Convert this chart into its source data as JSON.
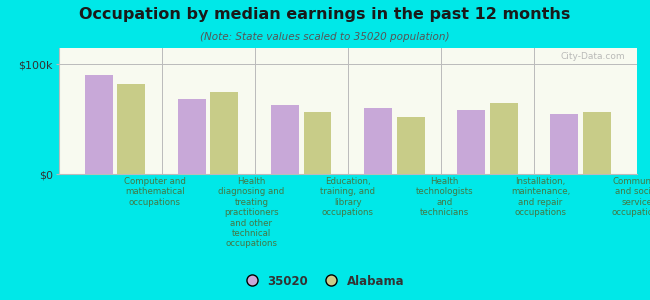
{
  "title": "Occupation by median earnings in the past 12 months",
  "subtitle": "(Note: State values scaled to 35020 population)",
  "categories": [
    "Computer and\nmathematical\noccupations",
    "Health\ndiagnosing and\ntreating\npractitioners\nand other\ntechnical\noccupations",
    "Education,\ntraining, and\nlibrary\noccupations",
    "Health\ntechnologists\nand\ntechnicians",
    "Installation,\nmaintenance,\nand repair\noccupations",
    "Community\nand social\nservice\noccupations"
  ],
  "values_35020": [
    90000,
    68000,
    63000,
    60000,
    58000,
    55000
  ],
  "values_alabama": [
    82000,
    75000,
    57000,
    52000,
    65000,
    57000
  ],
  "color_35020": "#c8a8d8",
  "color_alabama": "#c8cc88",
  "ylim": [
    0,
    115000
  ],
  "yticks": [
    0,
    100000
  ],
  "ytick_labels": [
    "$0",
    "$100k"
  ],
  "background_color": "#00e8e8",
  "plot_bg_start": "#e8f0d8",
  "plot_bg_end": "#f8faf0",
  "legend_label_35020": "35020",
  "legend_label_alabama": "Alabama",
  "watermark": "City-Data.com",
  "title_color": "#1a1a1a",
  "subtitle_color": "#555555",
  "xtick_color": "#447744",
  "ytick_color": "#333333",
  "spine_color": "#bbbbbb",
  "separator_color": "#bbbbbb"
}
